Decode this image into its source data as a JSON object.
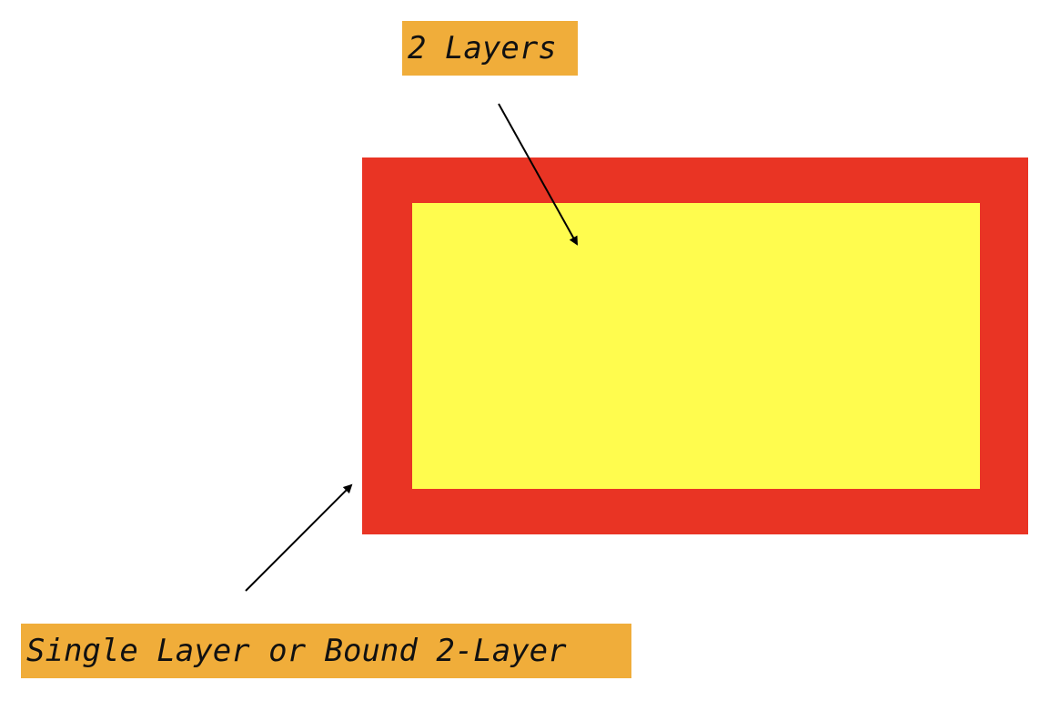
{
  "labels": {
    "top": "2 Layers",
    "bottom": "Single Layer or Bound 2-Layer"
  },
  "colors": {
    "outer_layer": "#e93424",
    "inner_layer": "#fffc4e",
    "label_background": "#f0ad3a",
    "arrow": "#000000"
  }
}
